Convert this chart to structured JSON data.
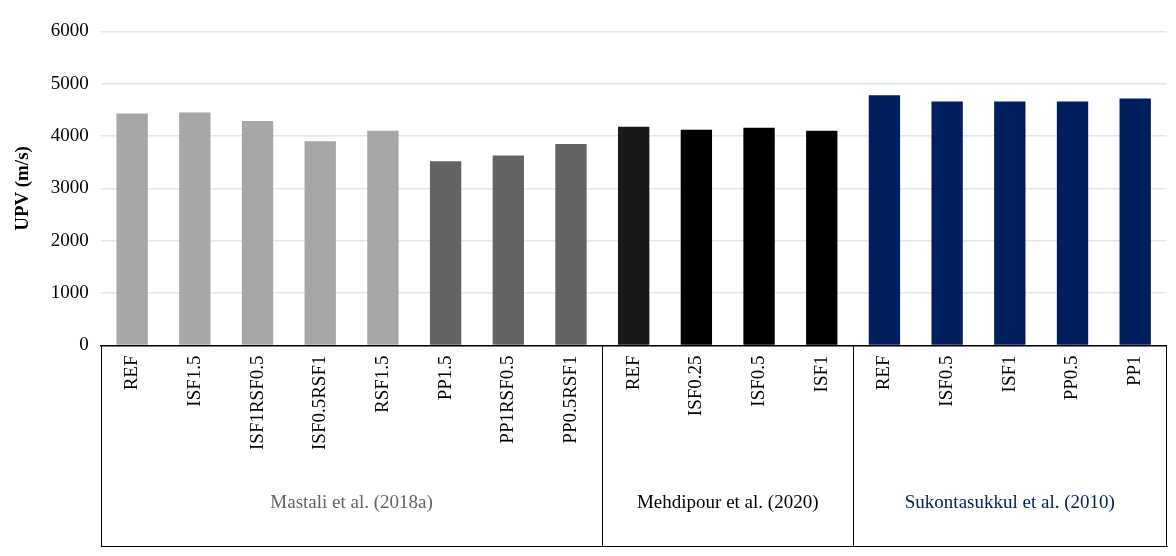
{
  "chart_data": {
    "type": "bar",
    "ylabel": "UPV (m/s)",
    "categories": [
      "REF",
      "ISF1.5",
      "ISF1RSF0.5",
      "ISF0.5RSF1",
      "RSF1.5",
      "PP1.5",
      "PP1RSF0.5",
      "PP0.5RSF1",
      "REF",
      "ISF0.25",
      "ISF0.5",
      "ISF1",
      "REF",
      "ISF0.5",
      "ISF1",
      "PP0.5",
      "PP1"
    ],
    "series": [
      {
        "name": "Mastali et al. (2018a)",
        "colors": [
          "#a6a6a6",
          "#a6a6a6",
          "#a6a6a6",
          "#a6a6a6",
          "#a6a6a6",
          "#636363",
          "#636363",
          "#636363",
          null,
          null,
          null,
          null,
          null,
          null,
          null,
          null,
          null
        ],
        "values": [
          4430,
          4450,
          4290,
          3900,
          4100,
          3520,
          3630,
          3850,
          null,
          null,
          null,
          null,
          null,
          null,
          null,
          null,
          null
        ]
      },
      {
        "name": "Mehdipour et al. (2020)",
        "colors": [
          null,
          null,
          null,
          null,
          null,
          null,
          null,
          null,
          "#191919",
          "#000000",
          "#000000",
          "#000000",
          null,
          null,
          null,
          null,
          null
        ],
        "values": [
          null,
          null,
          null,
          null,
          null,
          null,
          null,
          null,
          4180,
          4120,
          4160,
          4100,
          null,
          null,
          null,
          null,
          null
        ]
      },
      {
        "name": "Sukontasukkul et al. (2010)",
        "color": "#001f5f",
        "values": [
          null,
          null,
          null,
          null,
          null,
          null,
          null,
          null,
          null,
          null,
          null,
          null,
          4780,
          4660,
          4660,
          4660,
          4720
        ]
      }
    ],
    "ylim": [
      0,
      6000
    ],
    "yticks": [
      0,
      1000,
      2000,
      3000,
      4000,
      5000,
      6000
    ],
    "grid": "y",
    "legend": false
  }
}
